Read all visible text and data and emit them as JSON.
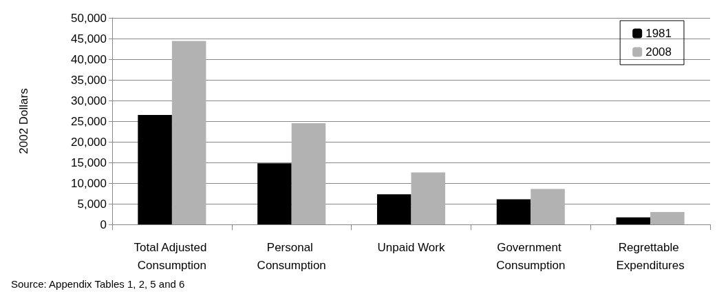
{
  "chart_data": {
    "type": "bar",
    "ylabel": "2002 Dollars",
    "categories": [
      "Total Adjusted Consumption",
      "Personal Consumption",
      "Unpaid Work",
      "Government Consumption",
      "Regrettable Expenditures"
    ],
    "series": [
      {
        "name": "1981",
        "color": "#000000",
        "values": [
          26500,
          14800,
          7300,
          6100,
          1700
        ]
      },
      {
        "name": "2008",
        "color": "#b2b2b2",
        "values": [
          44400,
          24500,
          12600,
          8600,
          3000
        ]
      }
    ],
    "ylim": [
      0,
      50000
    ],
    "yticks": [
      {
        "value": 0,
        "label": "0"
      },
      {
        "value": 5000,
        "label": "5,000"
      },
      {
        "value": 10000,
        "label": "10,000"
      },
      {
        "value": 15000,
        "label": "15,000"
      },
      {
        "value": 20000,
        "label": "20,000"
      },
      {
        "value": 25000,
        "label": "25,000"
      },
      {
        "value": 30000,
        "label": "30,000"
      },
      {
        "value": 35000,
        "label": "35,000"
      },
      {
        "value": 40000,
        "label": "40,000"
      },
      {
        "value": 45000,
        "label": "45,000"
      },
      {
        "value": 50000,
        "label": "50,000"
      }
    ],
    "grid": "y",
    "legend": "top right",
    "annotations": [
      "Source: Appendix Tables 1, 2, 5 and 6"
    ]
  }
}
